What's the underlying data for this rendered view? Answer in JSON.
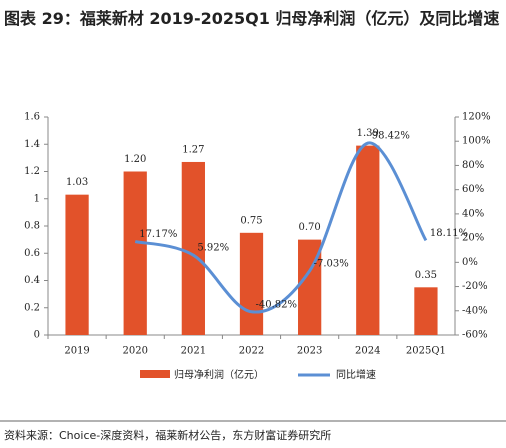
{
  "chart_data": {
    "type": "bar-line",
    "title": "图表 29：福莱新材 2019-2025Q1 归母净利润（亿元）及同比增速",
    "source": "资料来源：Choice-深度资料，福莱新材公告，东方财富证券研究所",
    "categories": [
      "2019",
      "2020",
      "2021",
      "2022",
      "2023",
      "2024",
      "2025Q1"
    ],
    "series": [
      {
        "name": "归母净利润（亿元）",
        "color": "#e2522a",
        "values": [
          1.03,
          1.2,
          1.27,
          0.75,
          0.7,
          1.39,
          0.35
        ],
        "value_labels": [
          "1.03",
          "1.20",
          "1.27",
          "0.75",
          "0.70",
          "1.39",
          "0.35"
        ]
      },
      {
        "name": "同比增速",
        "color": "#5b8fd4",
        "axis": "y2",
        "values": [
          null,
          17.17,
          5.92,
          -40.82,
          -7.03,
          98.42,
          18.11
        ],
        "value_labels": [
          null,
          "17.17%",
          "5.92%",
          "-40.82%",
          "-7.03%",
          "98.42%",
          "18.11%"
        ]
      }
    ],
    "ylim": [
      0,
      1.6
    ],
    "yticks": [
      0,
      0.2,
      0.4,
      0.6,
      0.8,
      1,
      1.2,
      1.4,
      1.6
    ],
    "y2lim": [
      -60,
      120
    ],
    "y2ticks": [
      {
        "value": -60,
        "label": "-60%"
      },
      {
        "value": -40,
        "label": "-40%"
      },
      {
        "value": -20,
        "label": "-20%"
      },
      {
        "value": 0,
        "label": "0%"
      },
      {
        "value": 20,
        "label": "20%"
      },
      {
        "value": 40,
        "label": "40%"
      },
      {
        "value": 60,
        "label": "60%"
      },
      {
        "value": 80,
        "label": "80%"
      },
      {
        "value": 100,
        "label": "100%"
      },
      {
        "value": 120,
        "label": "120%"
      }
    ]
  }
}
